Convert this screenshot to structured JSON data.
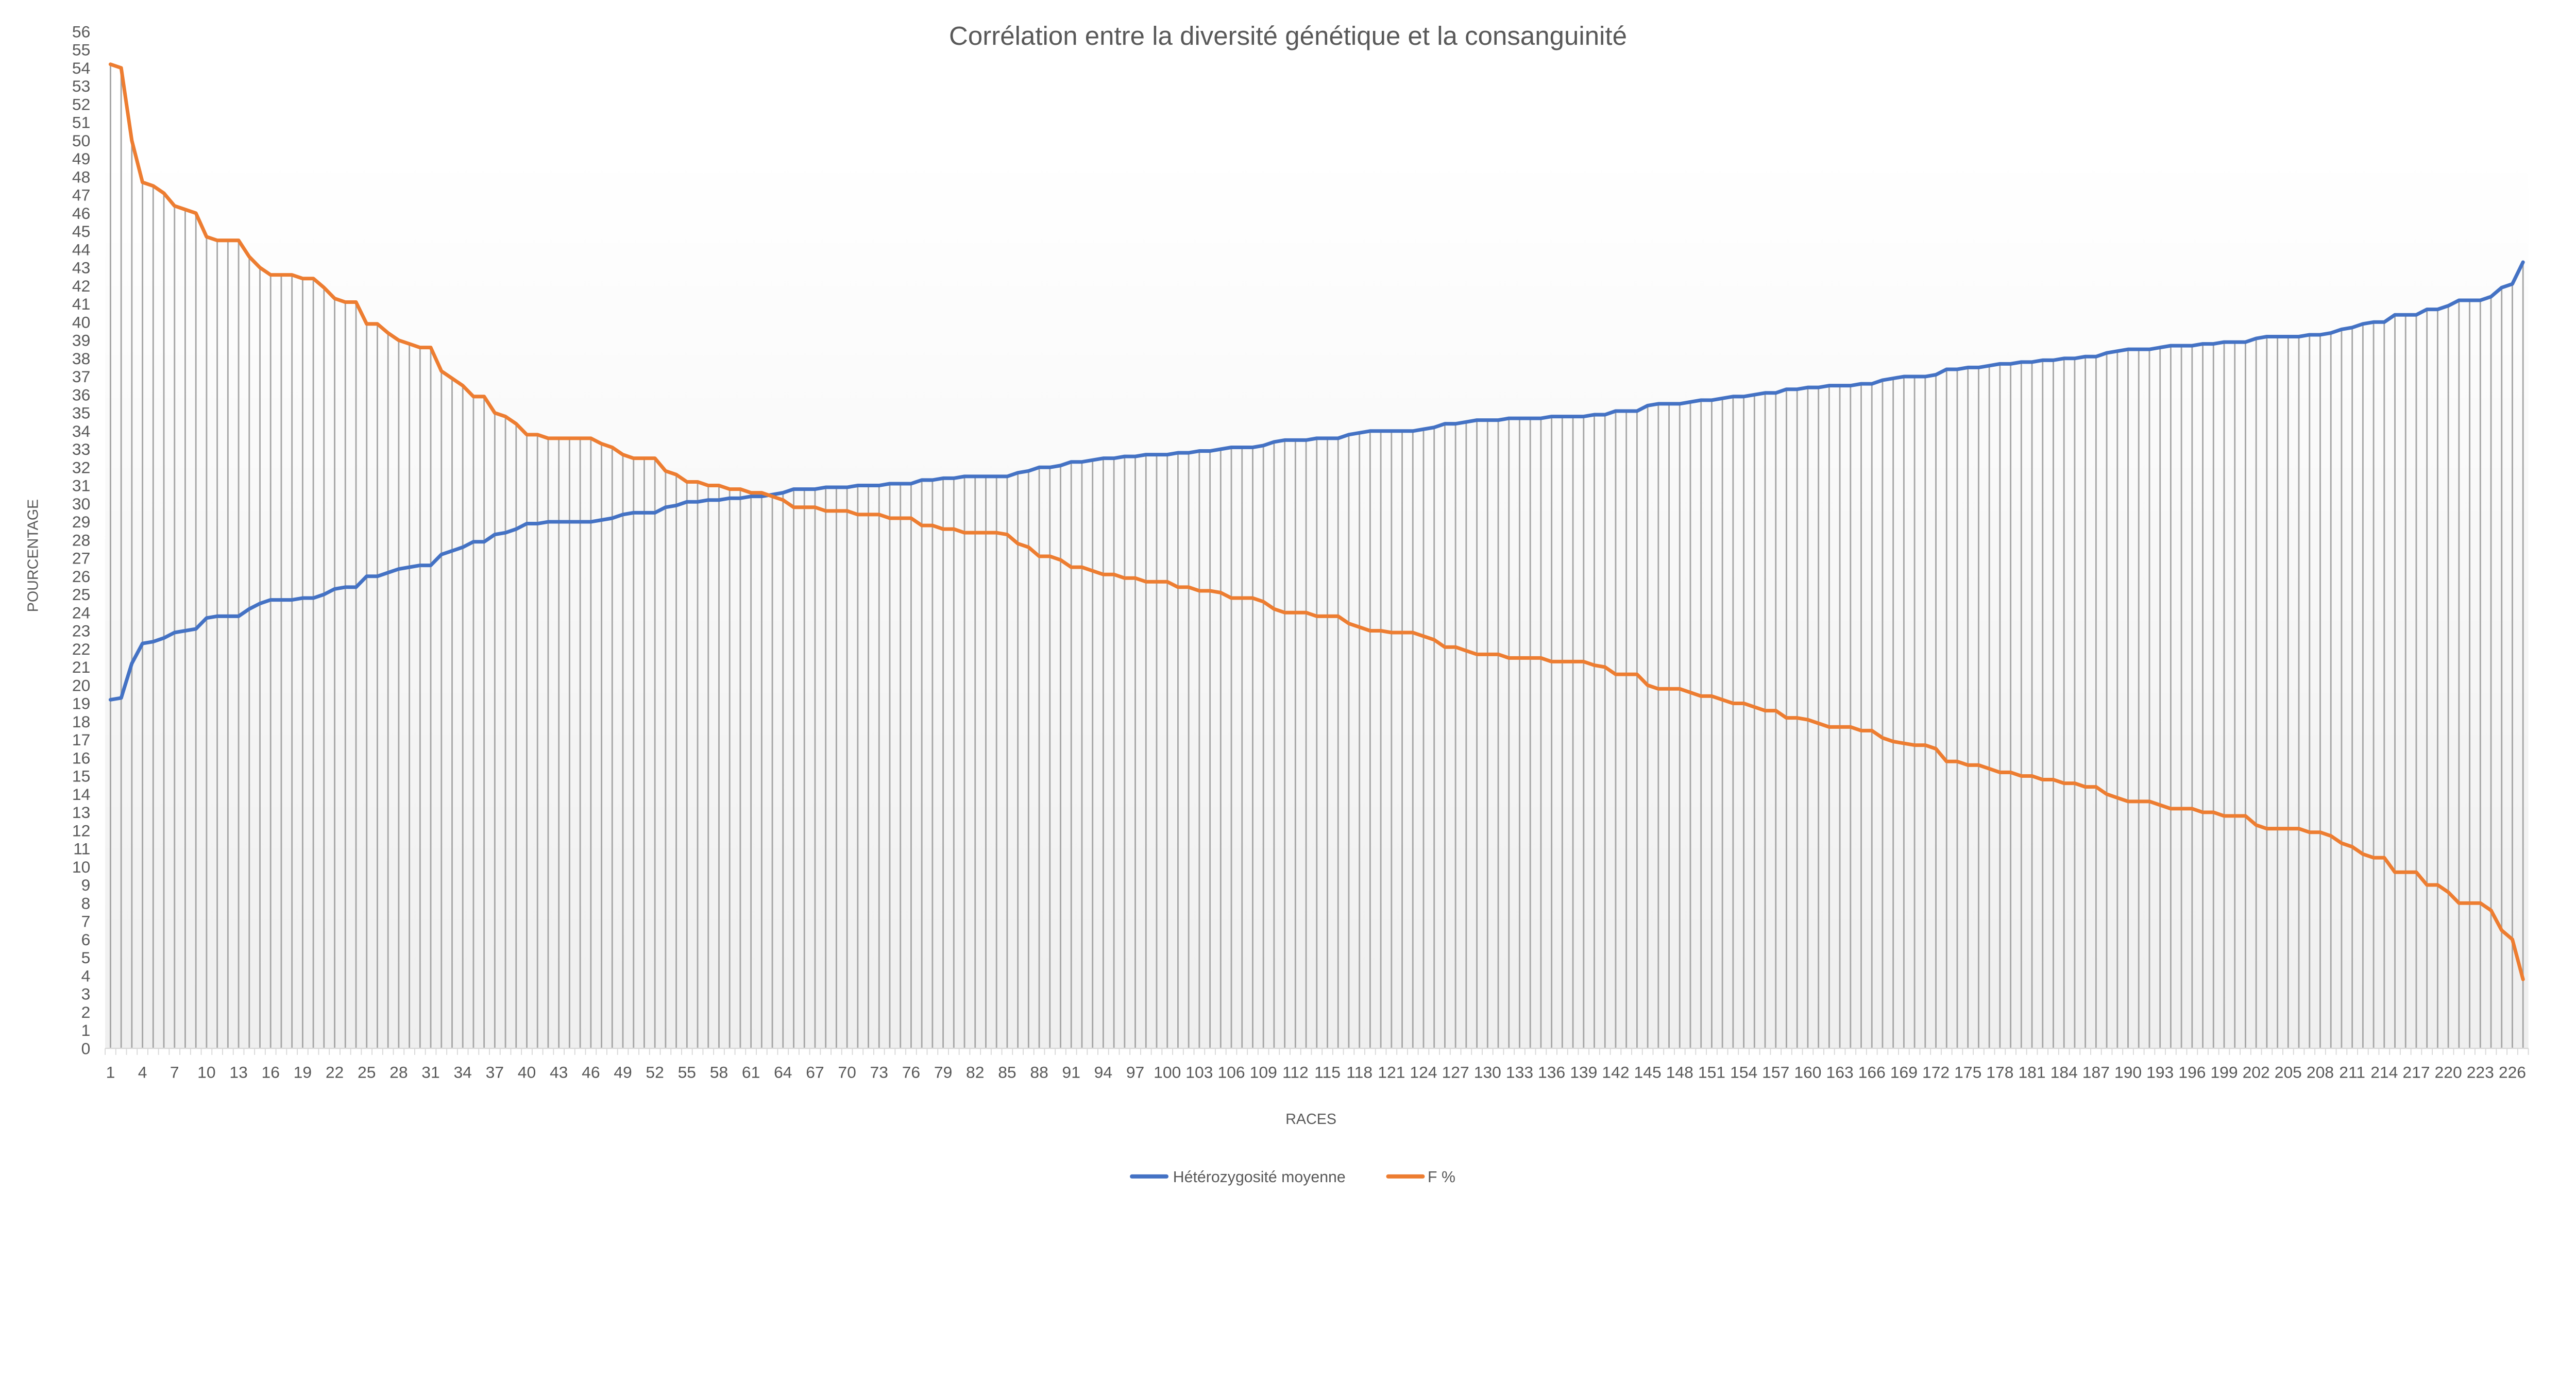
{
  "chart_data": {
    "type": "line",
    "title": "Corrélation entre la diversité génétique et la consanguinité",
    "xlabel": "RACES",
    "ylabel": "POURCENTAGE",
    "ylim": [
      0,
      56
    ],
    "y_tick_step": 1,
    "x_tick_interval": 3,
    "grid": false,
    "drop_lines": true,
    "legend_position": "bottom",
    "categories": [
      1,
      2,
      3,
      4,
      5,
      6,
      7,
      8,
      9,
      10,
      11,
      12,
      13,
      14,
      15,
      16,
      17,
      18,
      19,
      20,
      21,
      22,
      23,
      24,
      25,
      26,
      27,
      28,
      29,
      30,
      31,
      32,
      33,
      34,
      35,
      36,
      37,
      38,
      39,
      40,
      41,
      42,
      43,
      44,
      45,
      46,
      47,
      48,
      49,
      50,
      51,
      52,
      53,
      54,
      55,
      56,
      57,
      58,
      59,
      60,
      61,
      62,
      63,
      64,
      65,
      66,
      67,
      68,
      69,
      70,
      71,
      72,
      73,
      74,
      75,
      76,
      77,
      78,
      79,
      80,
      81,
      82,
      83,
      84,
      85,
      86,
      87,
      88,
      89,
      90,
      91,
      92,
      93,
      94,
      95,
      96,
      97,
      98,
      99,
      100,
      101,
      102,
      103,
      104,
      105,
      106,
      107,
      108,
      109,
      110,
      111,
      112,
      113,
      114,
      115,
      116,
      117,
      118,
      119,
      120,
      121,
      122,
      123,
      124,
      125,
      126,
      127,
      128,
      129,
      130,
      131,
      132,
      133,
      134,
      135,
      136,
      137,
      138,
      139,
      140,
      141,
      142,
      143,
      144,
      145,
      146,
      147,
      148,
      149,
      150,
      151,
      152,
      153,
      154,
      155,
      156,
      157,
      158,
      159,
      160,
      161,
      162,
      163,
      164,
      165,
      166,
      167,
      168,
      169,
      170,
      171,
      172,
      173,
      174,
      175,
      176,
      177,
      178,
      179,
      180,
      181,
      182,
      183,
      184,
      185,
      186,
      187,
      188,
      189,
      190,
      191,
      192,
      193,
      194,
      195,
      196,
      197,
      198,
      199,
      200,
      201,
      202,
      203,
      204,
      205,
      206,
      207,
      208,
      209,
      210,
      211,
      212,
      213,
      214,
      215,
      216,
      217,
      218,
      219,
      220,
      221,
      222,
      223,
      224,
      225,
      226,
      227
    ],
    "series": [
      {
        "name": "Hétérozygosité moyenne",
        "color": "#4472C4",
        "values": [
          19.2,
          19.3,
          21.2,
          22.3,
          22.4,
          22.6,
          22.9,
          23.0,
          23.1,
          23.7,
          23.8,
          23.8,
          23.8,
          24.2,
          24.5,
          24.7,
          24.7,
          24.7,
          24.8,
          24.8,
          25.0,
          25.3,
          25.4,
          25.4,
          26.0,
          26.0,
          26.2,
          26.4,
          26.5,
          26.6,
          26.6,
          27.2,
          27.4,
          27.6,
          27.9,
          27.9,
          28.3,
          28.4,
          28.6,
          28.9,
          28.9,
          29.0,
          29.0,
          29.0,
          29.0,
          29.0,
          29.1,
          29.2,
          29.4,
          29.5,
          29.5,
          29.5,
          29.8,
          29.9,
          30.1,
          30.1,
          30.2,
          30.2,
          30.3,
          30.3,
          30.4,
          30.4,
          30.5,
          30.6,
          30.8,
          30.8,
          30.8,
          30.9,
          30.9,
          30.9,
          31.0,
          31.0,
          31.0,
          31.1,
          31.1,
          31.1,
          31.3,
          31.3,
          31.4,
          31.4,
          31.5,
          31.5,
          31.5,
          31.5,
          31.5,
          31.7,
          31.8,
          32.0,
          32.0,
          32.1,
          32.3,
          32.3,
          32.4,
          32.5,
          32.5,
          32.6,
          32.6,
          32.7,
          32.7,
          32.7,
          32.8,
          32.8,
          32.9,
          32.9,
          33.0,
          33.1,
          33.1,
          33.1,
          33.2,
          33.4,
          33.5,
          33.5,
          33.5,
          33.6,
          33.6,
          33.6,
          33.8,
          33.9,
          34.0,
          34.0,
          34.0,
          34.0,
          34.0,
          34.1,
          34.2,
          34.4,
          34.4,
          34.5,
          34.6,
          34.6,
          34.6,
          34.7,
          34.7,
          34.7,
          34.7,
          34.8,
          34.8,
          34.8,
          34.8,
          34.9,
          34.9,
          35.1,
          35.1,
          35.1,
          35.4,
          35.5,
          35.5,
          35.5,
          35.6,
          35.7,
          35.7,
          35.8,
          35.9,
          35.9,
          36.0,
          36.1,
          36.1,
          36.3,
          36.3,
          36.4,
          36.4,
          36.5,
          36.5,
          36.5,
          36.6,
          36.6,
          36.8,
          36.9,
          37.0,
          37.0,
          37.0,
          37.1,
          37.4,
          37.4,
          37.5,
          37.5,
          37.6,
          37.7,
          37.7,
          37.8,
          37.8,
          37.9,
          37.9,
          38.0,
          38.0,
          38.1,
          38.1,
          38.3,
          38.4,
          38.5,
          38.5,
          38.5,
          38.6,
          38.7,
          38.7,
          38.7,
          38.8,
          38.8,
          38.9,
          38.9,
          38.9,
          39.1,
          39.2,
          39.2,
          39.2,
          39.2,
          39.3,
          39.3,
          39.4,
          39.6,
          39.7,
          39.9,
          40.0,
          40.0,
          40.4,
          40.4,
          40.4,
          40.7,
          40.7,
          40.9,
          41.2,
          41.2,
          41.2,
          41.4,
          41.9,
          42.1,
          43.3
        ]
      },
      {
        "name": "F %",
        "color": "#ED7D31",
        "values": [
          54.2,
          54.0,
          50.0,
          47.7,
          47.5,
          47.1,
          46.4,
          46.2,
          46.0,
          44.7,
          44.5,
          44.5,
          44.5,
          43.6,
          43.0,
          42.6,
          42.6,
          42.6,
          42.4,
          42.4,
          41.9,
          41.3,
          41.1,
          41.1,
          39.9,
          39.9,
          39.4,
          39.0,
          38.8,
          38.6,
          38.6,
          37.3,
          36.9,
          36.5,
          35.9,
          35.9,
          35.0,
          34.8,
          34.4,
          33.8,
          33.8,
          33.6,
          33.6,
          33.6,
          33.6,
          33.6,
          33.3,
          33.1,
          32.7,
          32.5,
          32.5,
          32.5,
          31.8,
          31.6,
          31.2,
          31.2,
          31.0,
          31.0,
          30.8,
          30.8,
          30.6,
          30.6,
          30.4,
          30.2,
          29.8,
          29.8,
          29.8,
          29.6,
          29.6,
          29.6,
          29.4,
          29.4,
          29.4,
          29.2,
          29.2,
          29.2,
          28.8,
          28.8,
          28.6,
          28.6,
          28.4,
          28.4,
          28.4,
          28.4,
          28.3,
          27.8,
          27.6,
          27.1,
          27.1,
          26.9,
          26.5,
          26.5,
          26.3,
          26.1,
          26.1,
          25.9,
          25.9,
          25.7,
          25.7,
          25.7,
          25.4,
          25.4,
          25.2,
          25.2,
          25.1,
          24.8,
          24.8,
          24.8,
          24.6,
          24.2,
          24.0,
          24.0,
          24.0,
          23.8,
          23.8,
          23.8,
          23.4,
          23.2,
          23.0,
          23.0,
          22.9,
          22.9,
          22.9,
          22.7,
          22.5,
          22.1,
          22.1,
          21.9,
          21.7,
          21.7,
          21.7,
          21.5,
          21.5,
          21.5,
          21.5,
          21.3,
          21.3,
          21.3,
          21.3,
          21.1,
          21.0,
          20.6,
          20.6,
          20.6,
          20.0,
          19.8,
          19.8,
          19.8,
          19.6,
          19.4,
          19.4,
          19.2,
          19.0,
          19.0,
          18.8,
          18.6,
          18.6,
          18.2,
          18.2,
          18.1,
          17.9,
          17.7,
          17.7,
          17.7,
          17.5,
          17.5,
          17.1,
          16.9,
          16.8,
          16.7,
          16.7,
          16.5,
          15.8,
          15.8,
          15.6,
          15.6,
          15.4,
          15.2,
          15.2,
          15.0,
          15.0,
          14.8,
          14.8,
          14.6,
          14.6,
          14.4,
          14.4,
          14.0,
          13.8,
          13.6,
          13.6,
          13.6,
          13.4,
          13.2,
          13.2,
          13.2,
          13.0,
          13.0,
          12.8,
          12.8,
          12.8,
          12.3,
          12.1,
          12.1,
          12.1,
          12.1,
          11.9,
          11.9,
          11.7,
          11.3,
          11.1,
          10.7,
          10.5,
          10.5,
          9.7,
          9.7,
          9.7,
          9.0,
          9.0,
          8.6,
          8.0,
          8.0,
          8.0,
          7.6,
          6.5,
          6.0,
          3.8
        ]
      }
    ]
  }
}
